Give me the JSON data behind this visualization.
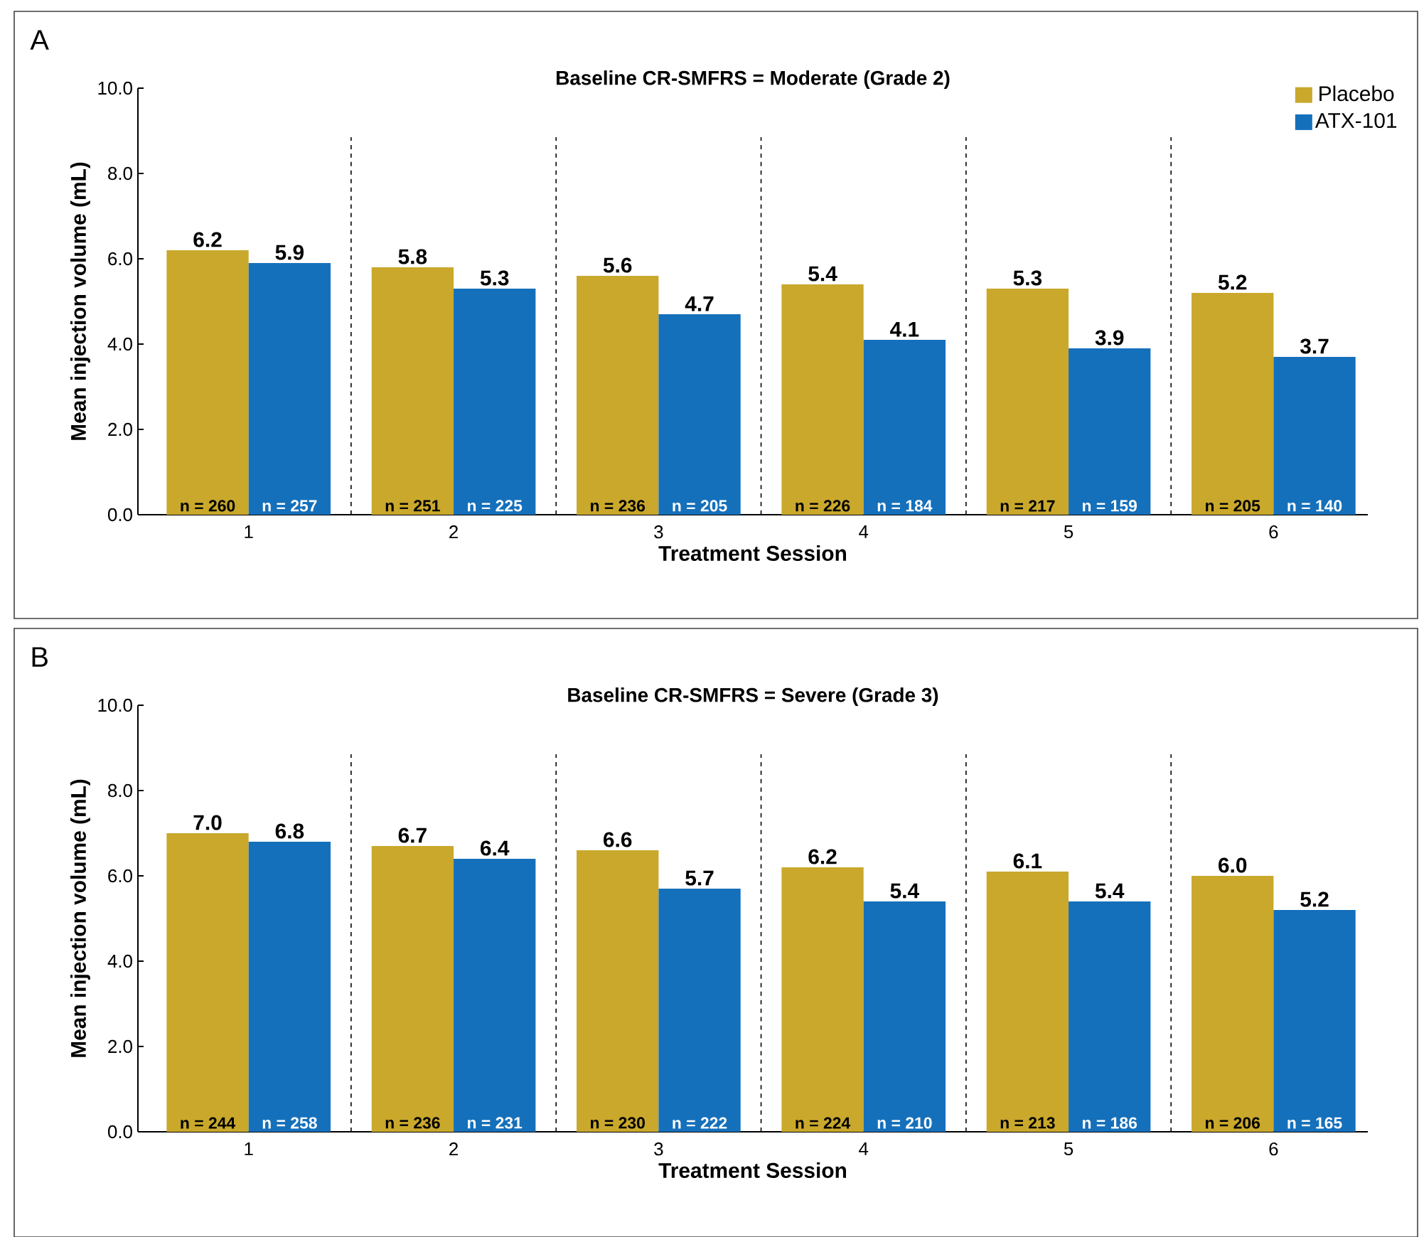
{
  "chart_data": [
    {
      "type": "bar",
      "title": "Baseline CR-SMFRS = Moderate (Grade 2)",
      "xlabel": "Treatment Session",
      "ylabel": "Mean injection volume (mL)",
      "categories": [
        "1",
        "2",
        "3",
        "4",
        "5",
        "6"
      ],
      "series": [
        {
          "name": "Placebo",
          "color": "#c9a82c",
          "values": [
            6.2,
            5.8,
            5.6,
            5.4,
            5.3,
            5.2
          ],
          "value_labels": [
            "6.2",
            "5.8",
            "5.6",
            "5.4",
            "5.3",
            "5.2"
          ]
        },
        {
          "name": "ATX-101",
          "color": "#1570bb",
          "values": [
            5.9,
            5.3,
            4.7,
            4.1,
            3.9,
            3.7
          ],
          "value_labels": [
            "5.9",
            "5.3",
            "4.7",
            "4.1",
            "3.9",
            "3.7"
          ]
        }
      ],
      "ylim": [
        0,
        10
      ],
      "yticks": [
        {
          "value": 0,
          "label": "0.0"
        },
        {
          "value": 2,
          "label": "2.0"
        },
        {
          "value": 4,
          "label": "4.0"
        },
        {
          "value": 6,
          "label": "6.0"
        },
        {
          "value": 8,
          "label": "8.0"
        },
        {
          "value": 10,
          "label": "10.0"
        }
      ],
      "legend": "top right",
      "annotations": [
        "A",
        {
          "text": "n = 260",
          "x": "1",
          "y": 0
        },
        {
          "text": "n = 257",
          "x": "1",
          "y": 0
        },
        {
          "text": "n = 251",
          "x": "2",
          "y": 0
        },
        {
          "text": "n = 225",
          "x": "2",
          "y": 0
        },
        {
          "text": "n = 236",
          "x": "3",
          "y": 0
        },
        {
          "text": "n = 205",
          "x": "3",
          "y": 0
        },
        {
          "text": "n = 226",
          "x": "4",
          "y": 0
        },
        {
          "text": "n = 184",
          "x": "4",
          "y": 0
        },
        {
          "text": "n = 217",
          "x": "5",
          "y": 0
        },
        {
          "text": "n = 159",
          "x": "5",
          "y": 0
        },
        {
          "text": "n = 205",
          "x": "6",
          "y": 0
        },
        {
          "text": "n = 140",
          "x": "6",
          "y": 0
        }
      ]
    },
    {
      "type": "bar",
      "title": "Baseline CR-SMFRS = Severe (Grade 3)",
      "xlabel": "Treatment Session",
      "ylabel": "Mean injection volume (mL)",
      "categories": [
        "1",
        "2",
        "3",
        "4",
        "5",
        "6"
      ],
      "series": [
        {
          "color": "#c9a82c",
          "values": [
            7.0,
            6.7,
            6.6,
            6.2,
            6.1,
            6.0
          ],
          "value_labels": [
            "7.0",
            "6.7",
            "6.6",
            "6.2",
            "6.1",
            "6.0"
          ]
        },
        {
          "color": "#1570bb",
          "values": [
            6.8,
            6.4,
            5.7,
            5.4,
            5.4,
            5.2
          ],
          "value_labels": [
            "6.8",
            "6.4",
            "5.7",
            "5.4",
            "5.4",
            "5.2"
          ]
        }
      ],
      "ylim": [
        0,
        10
      ],
      "yticks": [
        {
          "value": 0,
          "label": "0.0"
        },
        {
          "value": 2,
          "label": "2.0"
        },
        {
          "value": 4,
          "label": "4.0"
        },
        {
          "value": 6,
          "label": "6.0"
        },
        {
          "value": 8,
          "label": "8.0"
        },
        {
          "value": 10,
          "label": "10.0"
        }
      ],
      "annotations": [
        "B",
        {
          "text": "n = 244",
          "x": "1",
          "y": 0
        },
        {
          "text": "n = 258",
          "x": "1",
          "y": 0
        },
        {
          "text": "n = 236",
          "x": "2",
          "y": 0
        },
        {
          "text": "n = 231",
          "x": "2",
          "y": 0
        },
        {
          "text": "n = 230",
          "x": "3",
          "y": 0
        },
        {
          "text": "n = 222",
          "x": "3",
          "y": 0
        },
        {
          "text": "n = 224",
          "x": "4",
          "y": 0
        },
        {
          "text": "n = 210",
          "x": "4",
          "y": 0
        },
        {
          "text": "n = 213",
          "x": "5",
          "y": 0
        },
        {
          "text": "n = 186",
          "x": "5",
          "y": 0
        },
        {
          "text": "n = 206",
          "x": "6",
          "y": 0
        },
        {
          "text": "n = 165",
          "x": "6",
          "y": 0
        }
      ]
    }
  ]
}
